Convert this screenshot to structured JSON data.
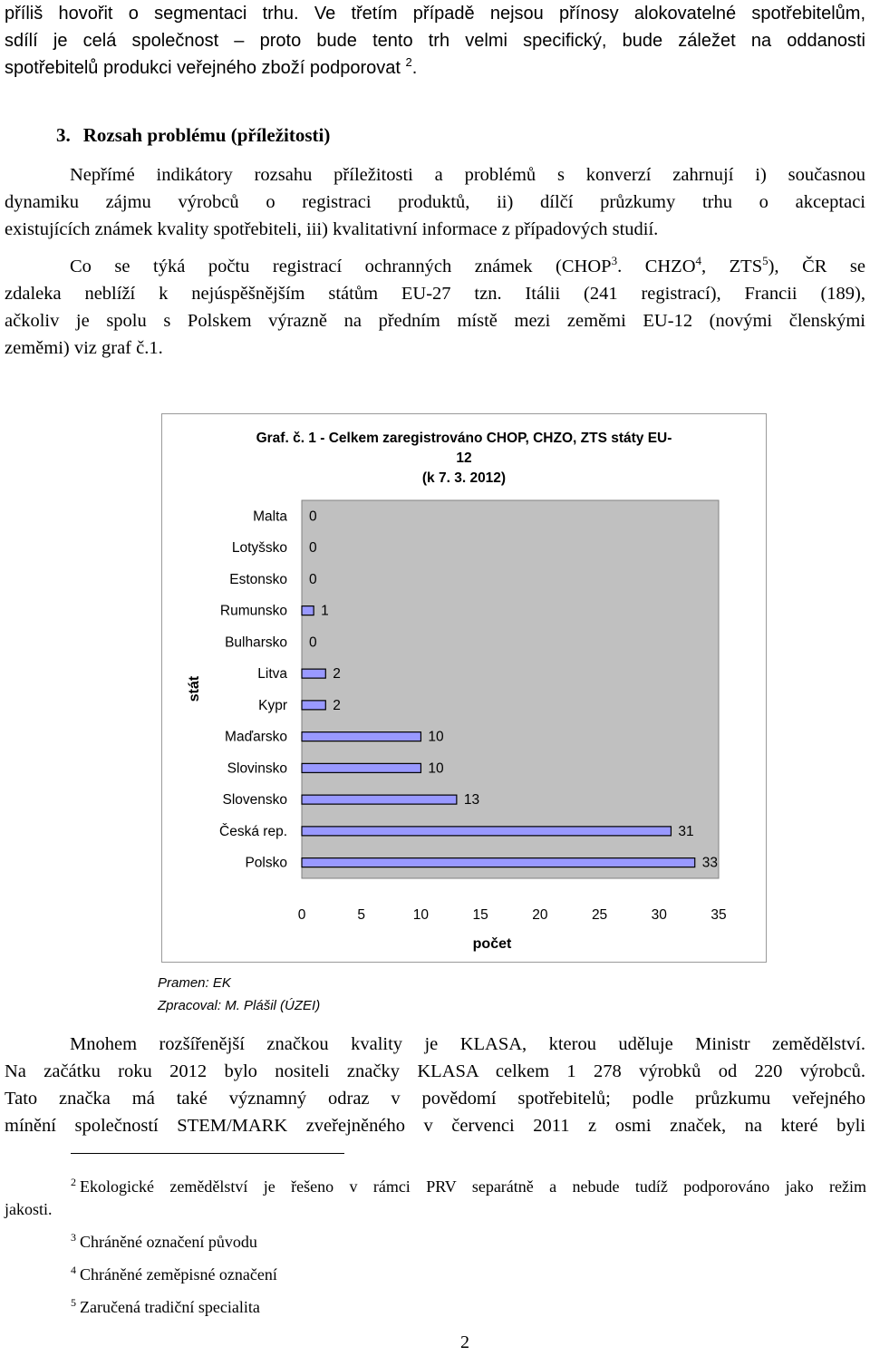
{
  "paragraph1": {
    "lines": [
      "příliš hovořit o segmentaci trhu. Ve třetím případě nejsou přínosy alokovatelné spotřebitelům,",
      "sdílí je celá společnost – proto bude tento trh velmi specifický, bude záležet na oddanosti"
    ],
    "last_line_text": "spotřebitelů produkci veřejného zboží podporovat",
    "last_line_ref": "2",
    "last_line_end": "."
  },
  "heading": {
    "number": "3.",
    "text": "Rozsah problému (příležitosti)"
  },
  "paragraph2": {
    "lines": [
      "Nepřímé indikátory rozsahu příležitosti a problémů s konverzí zahrnují i) současnou",
      "dynamiku zájmu výrobců o registraci produktů, ii) dílčí průzkumy trhu o akceptaci"
    ],
    "last_line": "existujících známek kvality spotřebiteli, iii) kvalitativní informace z případových studií."
  },
  "paragraph3": {
    "line1_a": "Co se týká počtu registrací ochranných známek (CHOP",
    "ref3": "3",
    "line1_b": ". CHZO",
    "ref4": "4",
    "line1_c": ", ZTS",
    "ref5": "5",
    "line1_d": "), ČR se",
    "line2": "zdaleka neblíží k nejúspěšnějším státům EU-27 tzn. Itálii (241 registrací), Francii (189),",
    "line3": "ačkoliv je spolu s Polskem výrazně na předním místě mezi zeměmi EU-12 (novými členskými",
    "line4": "zeměmi) viz graf č.1."
  },
  "chart_data": {
    "type": "bar",
    "orientation": "horizontal",
    "title_lines": [
      "Graf. č. 1 - Celkem zaregistrováno CHOP, CHZO, ZTS státy EU-",
      "12",
      "(k 7. 3. 2012)"
    ],
    "ylabel": "stát",
    "xlabel": "počet",
    "categories": [
      "Malta",
      "Lotyšsko",
      "Estonsko",
      "Rumunsko",
      "Bulharsko",
      "Litva",
      "Kypr",
      "Maďarsko",
      "Slovinsko",
      "Slovensko",
      "Česká rep.",
      "Polsko"
    ],
    "values": [
      0,
      0,
      0,
      1,
      0,
      2,
      2,
      10,
      10,
      13,
      31,
      33
    ],
    "xlim": [
      0,
      35
    ],
    "xticks": [
      0,
      5,
      10,
      15,
      20,
      25,
      30,
      35
    ],
    "grid": false,
    "legend": "none",
    "colors": {
      "bar_fill": "#9999ff",
      "bar_stroke": "#000000",
      "plot_background": "#c0c0c0"
    }
  },
  "source": {
    "line1": "Pramen: EK",
    "line2": "Zpracoval: M. Plášil (ÚZEI)"
  },
  "paragraph4": {
    "lines": [
      "Na začátku roku 2012 bylo nositeli značky KLASA celkem 1 278 výrobků od 220 výrobců.",
      "Tato značka má také významný odraz v povědomí spotřebitelů; podle průzkumu veřejného",
      "mínění společností STEM/MARK zveřejněného v červenci 2011 z osmi značek, na které byli"
    ],
    "first_line": "Mnohem rozšířenější značkou kvality je KLASA, kterou uděluje Ministr zemědělství."
  },
  "footnotes": [
    {
      "number": "2",
      "text": "Ekologické zemědělství je řešeno v rámci PRV separátně a nebude tudíž podporováno jako režim",
      "continuation": "jakosti."
    },
    {
      "number": "3",
      "text": "Chráněné označení původu"
    },
    {
      "number": "4",
      "text": "Chráněné zeměpisné označení"
    },
    {
      "number": "5",
      "text": "Zaručená tradiční specialita"
    }
  ],
  "page_number": "2"
}
